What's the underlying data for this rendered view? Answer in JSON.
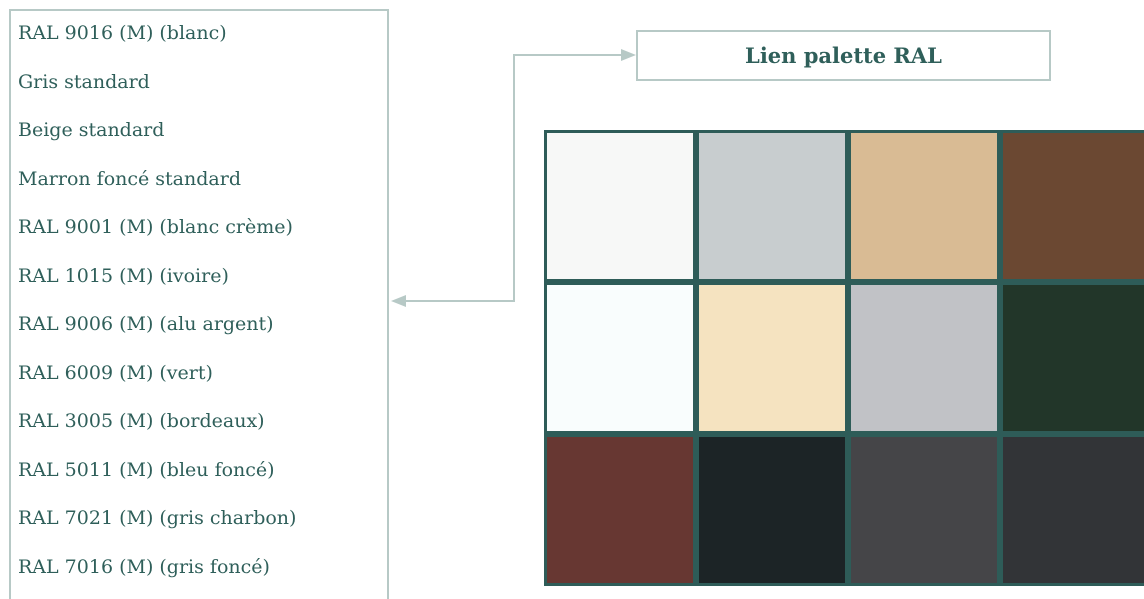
{
  "color_list": {
    "items": [
      "RAL 9016 (M) (blanc)",
      "Gris standard",
      "Beige standard",
      "Marron foncé standard",
      "RAL 9001 (M) (blanc crème)",
      "RAL 1015 (M) (ivoire)",
      "RAL 9006 (M) (alu argent)",
      "RAL 6009 (M) (vert)",
      "RAL 3005 (M) (bordeaux)",
      "RAL 5011 (M) (bleu foncé)",
      "RAL 7021 (M) (gris charbon)",
      "RAL 7016 (M) (gris foncé)"
    ]
  },
  "palette_link": {
    "label": "Lien palette RAL"
  },
  "swatches": [
    [
      "#f7f8f7",
      "#c8cdcf",
      "#d9bb94",
      "#6b4832"
    ],
    [
      "#f9fdfd",
      "#f5e3c0",
      "#c1c2c6",
      "#223629"
    ],
    [
      "#673732",
      "#1c2426",
      "#454548",
      "#323437"
    ]
  ],
  "colors": {
    "border": "#b7c9c6",
    "text": "#2f5f5a",
    "swatch_border": "#2e5c58",
    "connector": "#b7c9c6"
  }
}
